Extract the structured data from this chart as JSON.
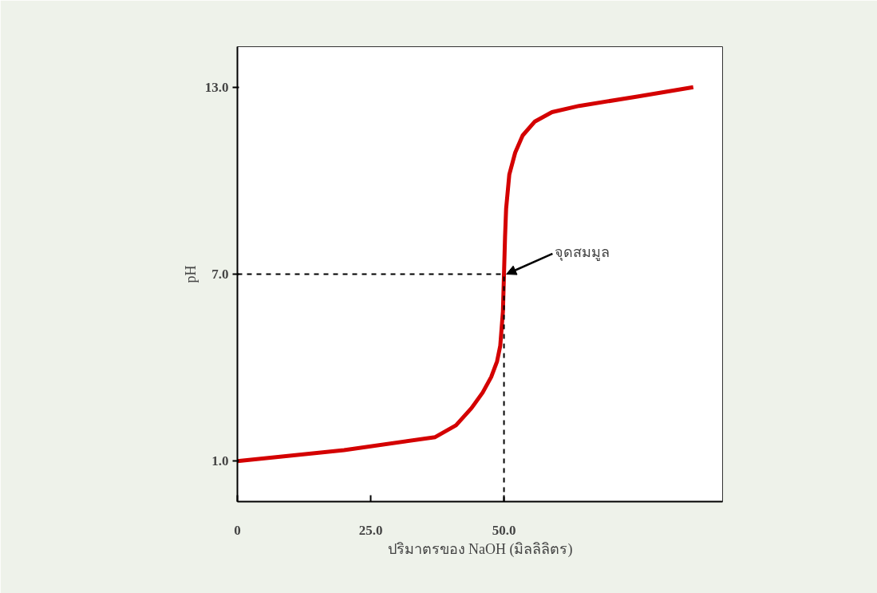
{
  "chart_data": {
    "type": "line",
    "xlabel": "ปริมาตรของ NaOH (มิลลิลิตร)",
    "ylabel": "pH",
    "x": [
      0,
      20,
      37.1,
      41,
      43.9,
      46,
      47.6,
      48.7,
      49.3,
      49.8,
      50,
      50.2,
      50.4,
      51,
      52.1,
      53.5,
      55.8,
      59,
      64.1,
      75,
      85.5
    ],
    "series": [
      {
        "color": "#d40000",
        "values": [
          1.0,
          1.35,
          1.77,
          2.15,
          2.7,
          3.2,
          3.7,
          4.2,
          4.7,
          5.8,
          7.0,
          8.2,
          9.1,
          10.2,
          10.9,
          11.45,
          11.9,
          12.2,
          12.4,
          12.7,
          13.0
        ]
      }
    ],
    "xlim": [
      0,
      91
    ],
    "ylim": [
      -0.3,
      14.3
    ],
    "xticks": [
      0,
      {
        "value": 25,
        "label": "25.0"
      },
      {
        "value": 50,
        "label": "50.0"
      }
    ],
    "yticks": [
      {
        "value": 1,
        "label": "1.0"
      },
      {
        "value": 7,
        "label": "7.0"
      },
      {
        "value": 13,
        "label": "13.0"
      }
    ],
    "ref_lines": [
      {
        "axis": "y",
        "value": 7,
        "label": null,
        "line_style": "dashed",
        "color": "#000000"
      },
      {
        "axis": "x",
        "value": 50,
        "label": null,
        "line_style": "dashed",
        "color": "#000000"
      }
    ],
    "annotations": [
      {
        "text": "จุดสมมูล",
        "x": 50,
        "y": 7
      }
    ],
    "grid": false,
    "line_style": "solid",
    "marker": "none"
  }
}
